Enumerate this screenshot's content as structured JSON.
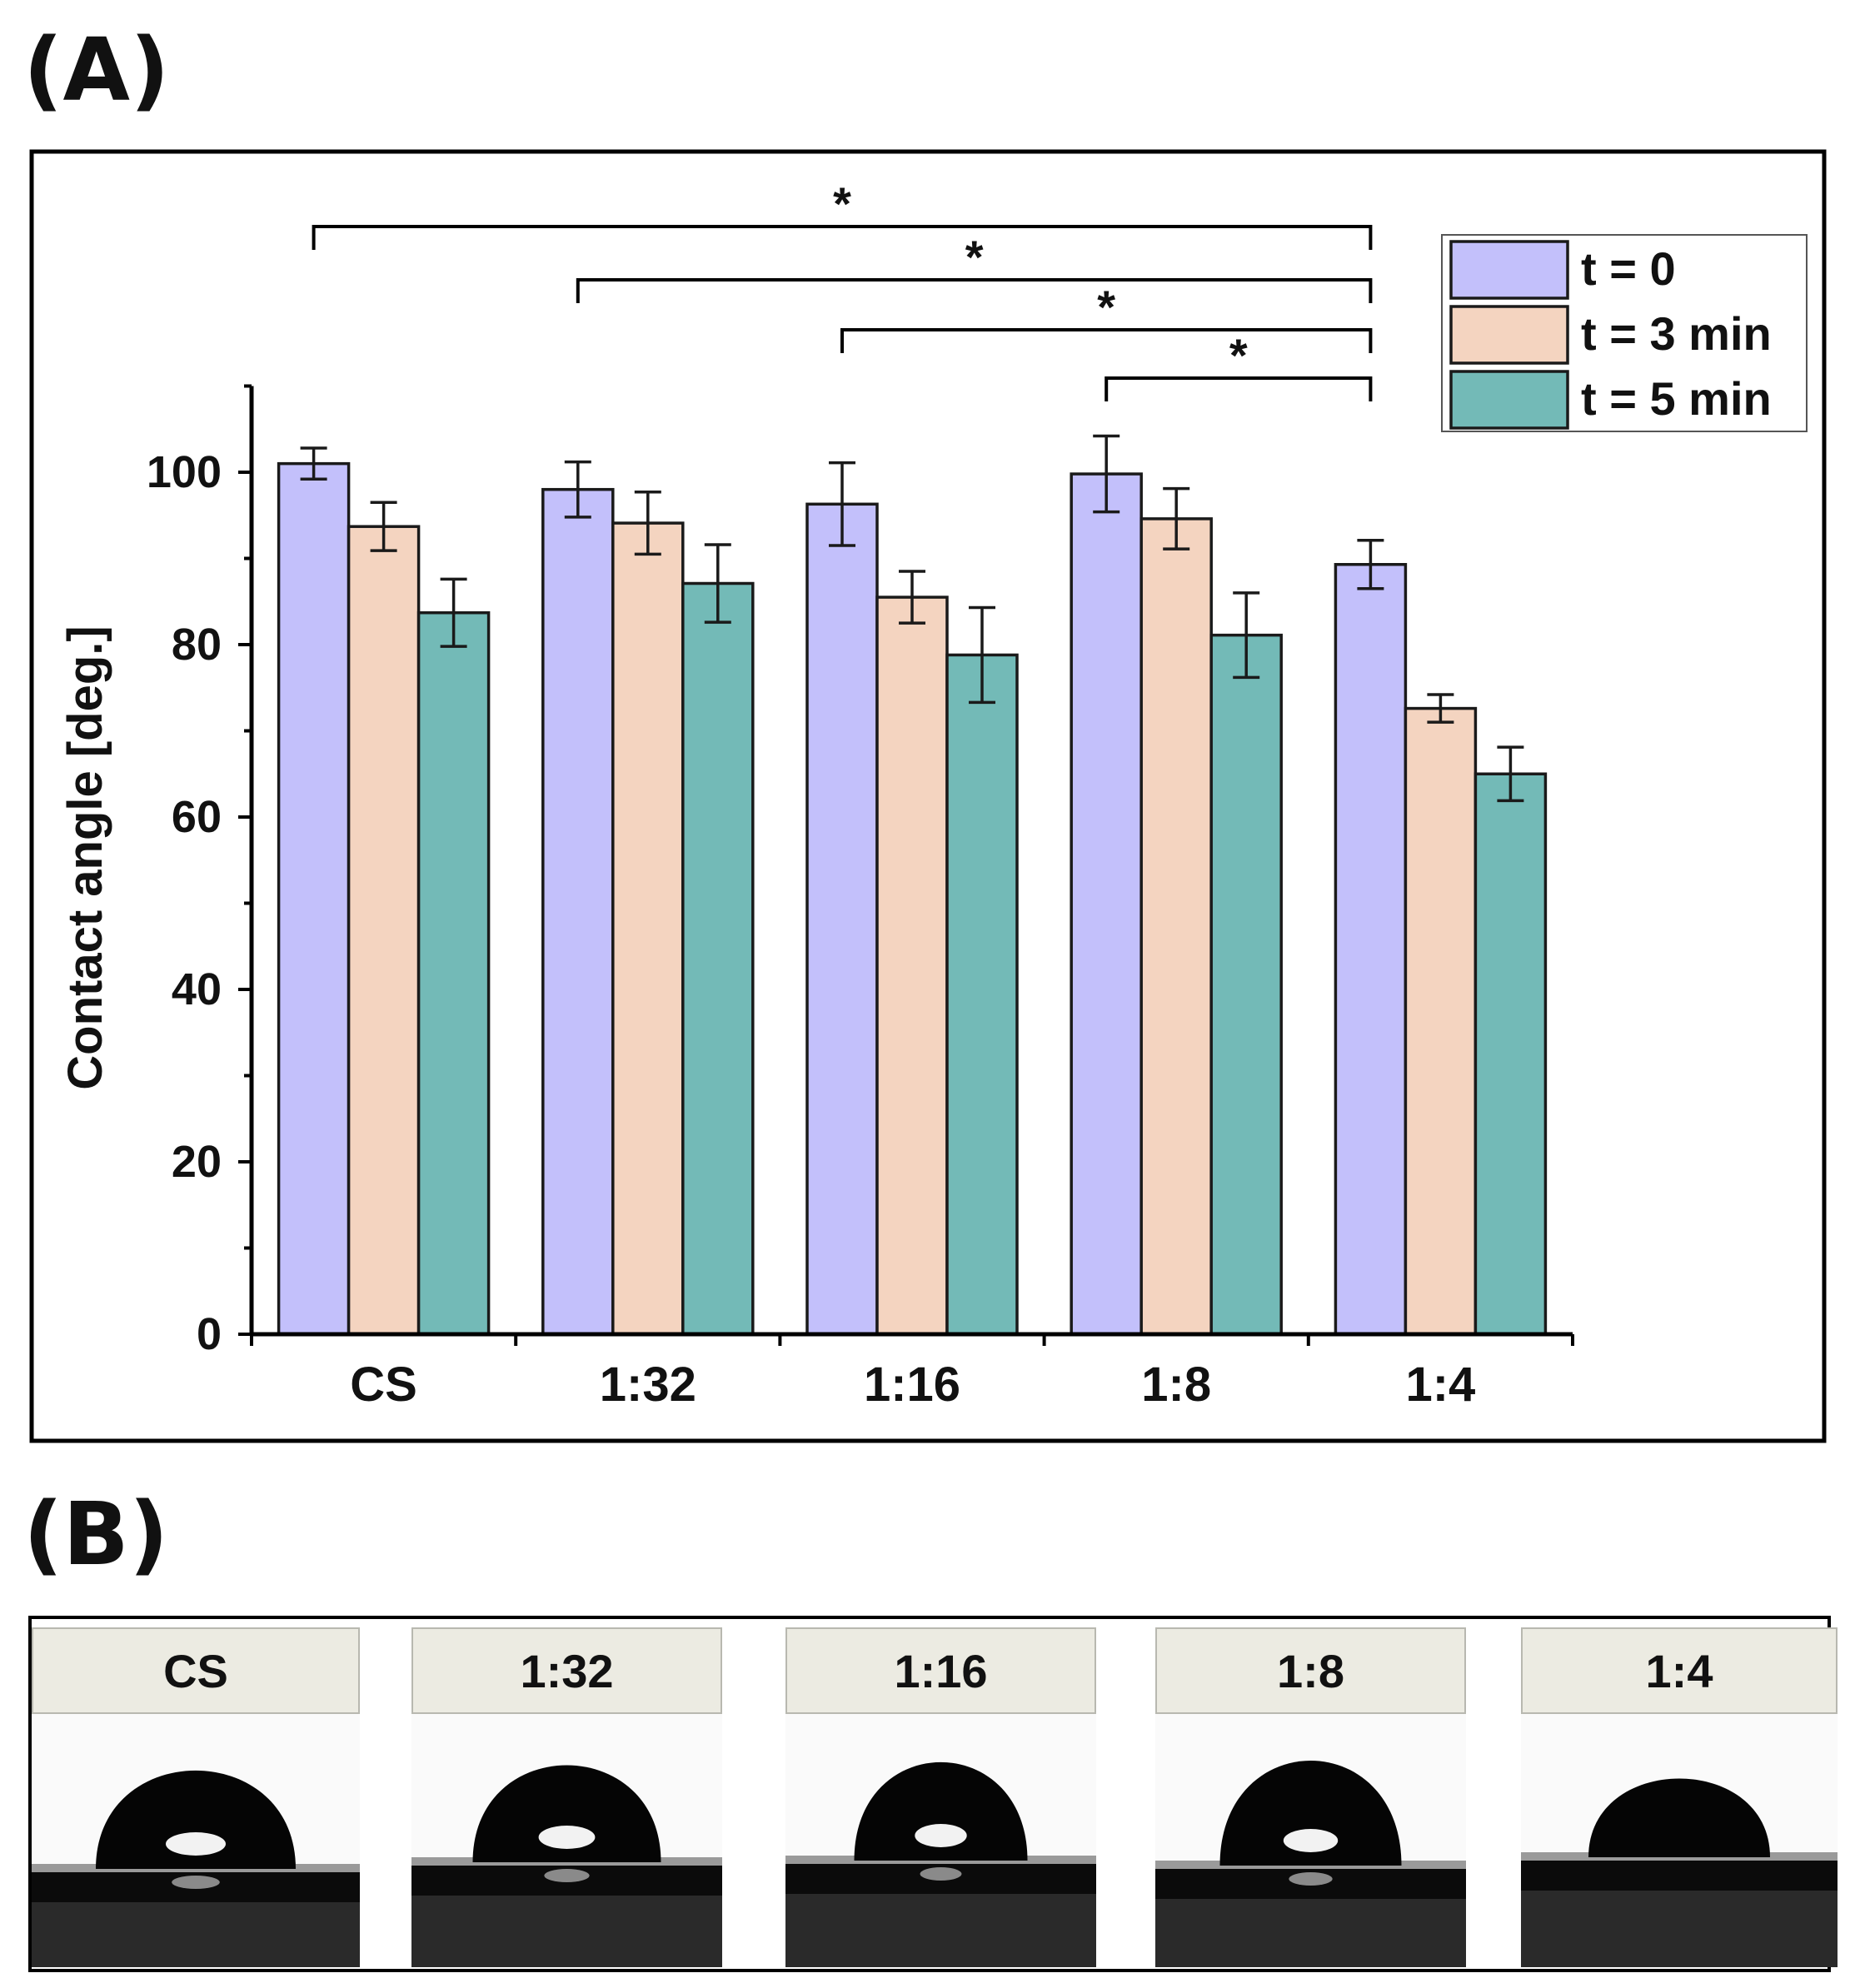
{
  "panel_labels": {
    "a": "(A)",
    "b": "(B)"
  },
  "chart_data": {
    "type": "bar",
    "title": "",
    "xlabel": "",
    "ylabel": "Contact angle [deg.]",
    "ylim": [
      0,
      110
    ],
    "yticks": [
      0,
      20,
      40,
      60,
      80,
      100
    ],
    "grid": false,
    "legend_position": "top-right",
    "categories": [
      "CS",
      "1:32",
      "1:16",
      "1:8",
      "1:4"
    ],
    "series": [
      {
        "name": "t = 0",
        "color": "#c3c0fb",
        "values": [
          101,
          98,
          96.3,
          99.8,
          89.3
        ],
        "errors": [
          1.8,
          3.2,
          4.8,
          4.4,
          2.8
        ]
      },
      {
        "name": "t = 3 min",
        "color": "#f4d4c0",
        "values": [
          93.7,
          94.1,
          85.5,
          94.6,
          72.6
        ],
        "errors": [
          2.8,
          3.6,
          3.0,
          3.5,
          1.6
        ]
      },
      {
        "name": "t = 5 min",
        "color": "#73bab7",
        "values": [
          83.7,
          87.1,
          78.8,
          81.1,
          65
        ],
        "errors": [
          3.9,
          4.5,
          5.5,
          4.9,
          3.1
        ]
      }
    ],
    "significance": [
      {
        "from": "CS",
        "to": "1:4",
        "label": "*"
      },
      {
        "from": "1:32",
        "to": "1:4",
        "label": "*"
      },
      {
        "from": "1:16",
        "to": "1:4",
        "label": "*"
      },
      {
        "from": "1:8",
        "to": "1:4",
        "label": "*"
      }
    ]
  },
  "photos": {
    "labels": [
      "CS",
      "1:32",
      "1:16",
      "1:8",
      "1:4"
    ]
  }
}
